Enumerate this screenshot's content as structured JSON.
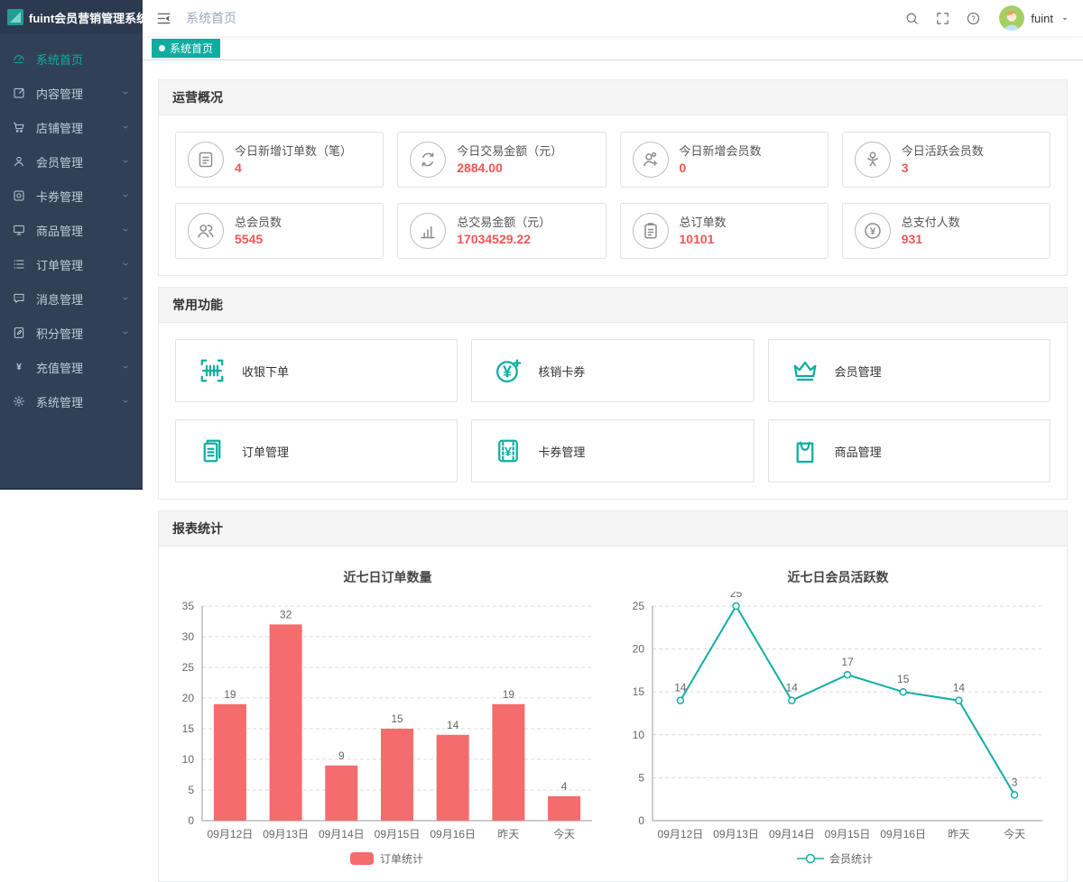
{
  "colors": {
    "accent": "#0fada0",
    "sidebar_bg": "#304156",
    "bar_red": "#f56c6c",
    "value_red": "#f25555",
    "line_teal": "#14ada3"
  },
  "app": {
    "title": "fuint会员营销管理系统"
  },
  "header": {
    "breadcrumb": "系统首页",
    "actions": [
      {
        "icon": "search-icon"
      },
      {
        "icon": "fullscreen-icon"
      },
      {
        "icon": "help-icon"
      }
    ],
    "user": {
      "name": "fuint"
    }
  },
  "tabbar": {
    "tabs": [
      {
        "label": "系统首页",
        "active": true
      }
    ]
  },
  "sidebar": {
    "items": [
      {
        "icon": "dashboard",
        "label": "系统首页",
        "active": true,
        "expandable": false
      },
      {
        "icon": "edit",
        "label": "内容管理",
        "active": false,
        "expandable": true
      },
      {
        "icon": "cart",
        "label": "店铺管理",
        "active": false,
        "expandable": true
      },
      {
        "icon": "user",
        "label": "会员管理",
        "active": false,
        "expandable": true
      },
      {
        "icon": "card",
        "label": "卡券管理",
        "active": false,
        "expandable": true
      },
      {
        "icon": "goods",
        "label": "商品管理",
        "active": false,
        "expandable": true
      },
      {
        "icon": "list",
        "label": "订单管理",
        "active": false,
        "expandable": true
      },
      {
        "icon": "message",
        "label": "消息管理",
        "active": false,
        "expandable": true
      },
      {
        "icon": "points",
        "label": "积分管理",
        "active": false,
        "expandable": true
      },
      {
        "icon": "recharge",
        "label": "充值管理",
        "active": false,
        "expandable": true
      },
      {
        "icon": "gear",
        "label": "系统管理",
        "active": false,
        "expandable": true
      }
    ]
  },
  "overview": {
    "title": "运营概况",
    "stats": [
      {
        "icon": "order-doc",
        "label": "今日新增订单数（笔）",
        "value": "4"
      },
      {
        "icon": "exchange",
        "label": "今日交易金额（元）",
        "value": "2884.00"
      },
      {
        "icon": "user-add",
        "label": "今日新增会员数",
        "value": "0"
      },
      {
        "icon": "user-active",
        "label": "今日活跃会员数",
        "value": "3"
      },
      {
        "icon": "users-group",
        "label": "总会员数",
        "value": "5545"
      },
      {
        "icon": "chart-bars",
        "label": "总交易金额（元）",
        "value": "17034529.22"
      },
      {
        "icon": "clipboard",
        "label": "总订单数",
        "value": "10101"
      },
      {
        "icon": "yen-coin",
        "label": "总支付人数",
        "value": "931"
      }
    ]
  },
  "functions": {
    "title": "常用功能",
    "items": [
      {
        "icon": "barcode-scan",
        "label": "收银下单"
      },
      {
        "icon": "verify-coupon",
        "label": "核销卡券"
      },
      {
        "icon": "crown",
        "label": "会员管理"
      },
      {
        "icon": "order-docs",
        "label": "订单管理"
      },
      {
        "icon": "coupon",
        "label": "卡券管理"
      },
      {
        "icon": "shopping-bag",
        "label": "商品管理"
      }
    ]
  },
  "reports": {
    "title": "报表统计"
  },
  "chart_data": [
    {
      "type": "bar",
      "title": "近七日订单数量",
      "categories": [
        "09月12日",
        "09月13日",
        "09月14日",
        "09月15日",
        "09月16日",
        "昨天",
        "今天"
      ],
      "values": [
        19,
        32,
        9,
        15,
        14,
        19,
        4
      ],
      "ylim": [
        0,
        35
      ],
      "ytick": 5,
      "grid": true,
      "legend": "订单统计",
      "legend_position": "bottom",
      "color": "#f56c6c"
    },
    {
      "type": "line",
      "title": "近七日会员活跃数",
      "categories": [
        "09月12日",
        "09月13日",
        "09月14日",
        "09月15日",
        "09月16日",
        "昨天",
        "今天"
      ],
      "values": [
        14,
        25,
        14,
        17,
        15,
        14,
        3
      ],
      "ylim": [
        0,
        25
      ],
      "ytick": 5,
      "grid": true,
      "legend": "会员统计",
      "legend_position": "bottom",
      "color": "#14ada3"
    }
  ]
}
